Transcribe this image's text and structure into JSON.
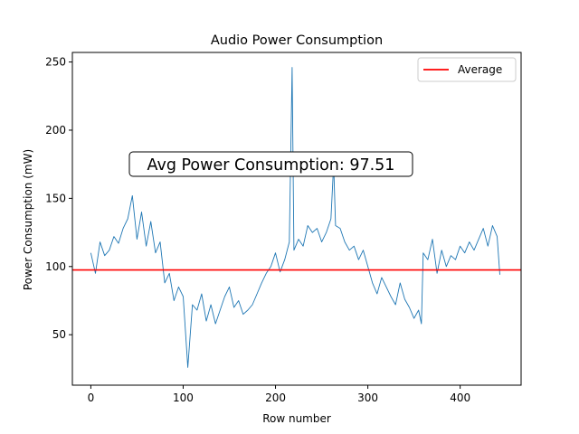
{
  "chart_data": {
    "type": "line",
    "title": "Audio Power Consumption",
    "xlabel": "Row number",
    "ylabel": "Power Consumption (mW)",
    "xlim": [
      -20,
      466
    ],
    "ylim": [
      13,
      257
    ],
    "x_ticks": [
      0,
      100,
      200,
      300,
      400
    ],
    "y_ticks": [
      50,
      100,
      150,
      200,
      250
    ],
    "grid": false,
    "legend_placement": "top-right",
    "series": [
      {
        "type": "line",
        "color": "#1f77b4",
        "x": [
          0,
          5,
          10,
          15,
          20,
          25,
          30,
          35,
          40,
          45,
          50,
          55,
          60,
          65,
          70,
          75,
          80,
          85,
          90,
          95,
          100,
          105,
          110,
          115,
          120,
          125,
          130,
          135,
          140,
          145,
          150,
          155,
          160,
          165,
          170,
          175,
          180,
          185,
          190,
          195,
          200,
          205,
          210,
          215,
          218,
          220,
          225,
          230,
          235,
          240,
          245,
          250,
          255,
          260,
          263,
          265,
          270,
          275,
          280,
          285,
          290,
          295,
          300,
          305,
          310,
          315,
          320,
          325,
          330,
          335,
          340,
          345,
          350,
          355,
          358,
          360,
          365,
          370,
          375,
          380,
          385,
          390,
          395,
          400,
          405,
          410,
          415,
          420,
          425,
          430,
          435,
          440,
          443
        ],
        "y": [
          110,
          95,
          118,
          108,
          112,
          122,
          117,
          128,
          135,
          152,
          120,
          140,
          115,
          133,
          110,
          118,
          88,
          95,
          75,
          85,
          78,
          26,
          72,
          68,
          80,
          60,
          72,
          58,
          68,
          78,
          85,
          70,
          75,
          65,
          68,
          72,
          80,
          88,
          95,
          100,
          110,
          96,
          105,
          118,
          246,
          112,
          120,
          115,
          130,
          125,
          128,
          118,
          125,
          135,
          175,
          130,
          128,
          118,
          112,
          115,
          105,
          112,
          100,
          88,
          80,
          92,
          85,
          78,
          72,
          88,
          76,
          70,
          62,
          68,
          58,
          110,
          105,
          120,
          95,
          112,
          100,
          108,
          105,
          115,
          110,
          118,
          112,
          120,
          128,
          115,
          130,
          122,
          94
        ]
      }
    ],
    "reference_line": {
      "y": 97.51,
      "color": "#ff0000",
      "name": "Average"
    },
    "annotation": {
      "text": "Avg Power Consumption: 97.51"
    }
  }
}
